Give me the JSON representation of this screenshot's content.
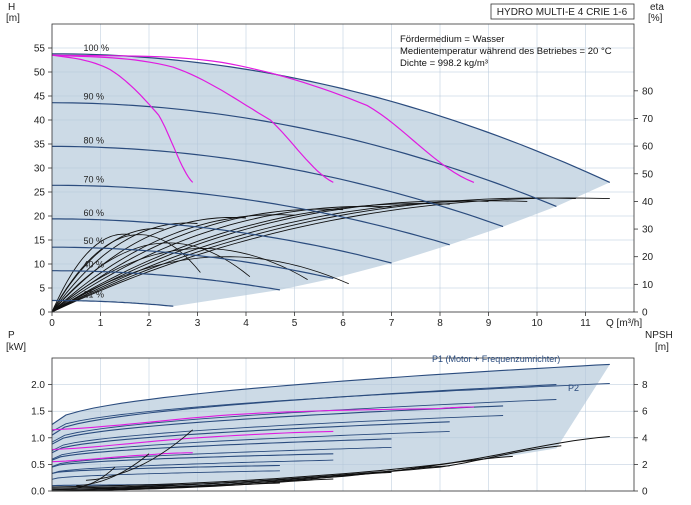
{
  "title": "HYDRO MULTI-E 4 CRIE 1-6",
  "medium_lines": [
    "Fördermedium = Wasser",
    "Medientemperatur während des Betriebes = 20 °C",
    "Dichte = 998.2 kg/m³"
  ],
  "colors": {
    "shade": "#c3d3e2",
    "grid": "#b4c7d9",
    "head_curve": "#2b4c7e",
    "eta_curve": "#111111",
    "npsh_curve": "#111111",
    "efficiency_curve": "#e01be0"
  },
  "chart_data": [
    {
      "type": "line",
      "name": "head",
      "xlabel": "Q [m³/h]",
      "ylabel_left": [
        "H",
        "[m]"
      ],
      "ylabel_right": [
        "eta",
        "[%]"
      ],
      "xlim": [
        0,
        12
      ],
      "ylim": [
        0,
        60
      ],
      "y2lim": [
        0,
        100
      ],
      "x_ticks": [
        0,
        1,
        2,
        3,
        4,
        5,
        6,
        7,
        8,
        9,
        10,
        11
      ],
      "y_ticks": [
        0,
        5,
        10,
        15,
        20,
        25,
        30,
        35,
        40,
        45,
        50,
        55
      ],
      "y2_ticks": [
        0,
        10,
        20,
        30,
        40,
        50,
        60,
        70,
        80
      ],
      "grid": true,
      "speed_labels": [
        {
          "label": "100 %",
          "speed": 1.0
        },
        {
          "label": "90 %",
          "speed": 0.9
        },
        {
          "label": "80 %",
          "speed": 0.8
        },
        {
          "label": "70 %",
          "speed": 0.7
        },
        {
          "label": "60 %",
          "speed": 0.6
        },
        {
          "label": "50 %",
          "speed": 0.5
        },
        {
          "label": "40 %",
          "speed": 0.4
        },
        {
          "label": "21 %",
          "speed": 0.21
        }
      ],
      "head_curves": [
        {
          "speed": 1.0,
          "h0": 53.8,
          "qmax": 11.5,
          "hend": 27.0
        },
        {
          "speed": 0.9,
          "h0": 43.6,
          "qmax": 10.4,
          "hend": 22.0
        },
        {
          "speed": 0.8,
          "h0": 34.5,
          "qmax": 9.3,
          "hend": 17.8
        },
        {
          "speed": 0.7,
          "h0": 26.4,
          "qmax": 8.2,
          "hend": 14.0
        },
        {
          "speed": 0.6,
          "h0": 19.4,
          "qmax": 7.0,
          "hend": 10.2
        },
        {
          "speed": 0.5,
          "h0": 13.5,
          "qmax": 5.8,
          "hend": 7.0
        },
        {
          "speed": 0.4,
          "h0": 8.6,
          "qmax": 4.7,
          "hend": 4.6
        },
        {
          "speed": 0.21,
          "h0": 2.4,
          "qmax": 2.5,
          "hend": 1.2
        }
      ],
      "efficiency_iso_curves": [
        {
          "x": [
            0,
            1.2,
            2.2,
            2.9
          ],
          "y": [
            53.5,
            50.5,
            41.0,
            27.0
          ]
        },
        {
          "x": [
            0,
            2.5,
            4.5,
            5.8
          ],
          "y": [
            53.5,
            51.0,
            40.0,
            27.0
          ]
        },
        {
          "x": [
            0,
            3.5,
            6.5,
            8.7
          ],
          "y": [
            53.5,
            52.0,
            43.0,
            27.0
          ]
        }
      ],
      "eta_curves_peak": [
        {
          "q": 11.5,
          "eta": 41.0
        },
        {
          "q": 10.8,
          "eta": 41.0
        },
        {
          "q": 9.8,
          "eta": 40.0
        },
        {
          "q": 9.0,
          "eta": 40.0
        },
        {
          "q": 8.2,
          "eta": 39.0
        },
        {
          "q": 7.0,
          "eta": 38.0
        },
        {
          "q": 6.0,
          "eta": 37.0
        },
        {
          "q": 5.0,
          "eta": 35.0
        },
        {
          "q": 4.0,
          "eta": 34.0
        },
        {
          "q": 3.0,
          "eta": 32.0
        },
        {
          "q": 2.3,
          "eta": 30.0
        },
        {
          "q": 1.6,
          "eta": 28.0
        }
      ]
    },
    {
      "type": "line",
      "name": "power",
      "ylabel_left": [
        "P",
        "[kW]"
      ],
      "ylabel_right": [
        "NPSH",
        "[m]"
      ],
      "xlim": [
        0,
        12
      ],
      "ylim": [
        0,
        2.5
      ],
      "y2lim": [
        0,
        10
      ],
      "y_ticks": [
        0.0,
        0.5,
        1.0,
        1.5,
        2.0
      ],
      "y_tick_labels": [
        "0.0",
        "0.5",
        "1.0",
        "1.5",
        "2.0"
      ],
      "y2_ticks": [
        0,
        2,
        4,
        6,
        8
      ],
      "series_labels": [
        "P1 (Motor + Frequenzumrichter)",
        "P2"
      ],
      "p1_curves": [
        {
          "p0": 1.25,
          "pend": 2.38,
          "qmax": 11.5
        },
        {
          "p0": 1.05,
          "pend": 2.0,
          "qmax": 10.4
        },
        {
          "p0": 0.88,
          "pend": 1.6,
          "qmax": 9.3
        },
        {
          "p0": 0.72,
          "pend": 1.3,
          "qmax": 8.2
        },
        {
          "p0": 0.58,
          "pend": 0.98,
          "qmax": 7.0
        },
        {
          "p0": 0.45,
          "pend": 0.7,
          "qmax": 5.8
        },
        {
          "p0": 0.33,
          "pend": 0.48,
          "qmax": 4.7
        },
        {
          "p0": 0.1,
          "pend": 0.12,
          "qmax": 2.5
        }
      ],
      "p2_curves": [
        {
          "p0": 1.12,
          "pend": 2.02,
          "qmax": 11.5
        },
        {
          "p0": 0.92,
          "pend": 1.72,
          "qmax": 10.4
        },
        {
          "p0": 0.76,
          "pend": 1.42,
          "qmax": 9.3
        },
        {
          "p0": 0.6,
          "pend": 1.12,
          "qmax": 8.2
        },
        {
          "p0": 0.46,
          "pend": 0.82,
          "qmax": 7.0
        },
        {
          "p0": 0.33,
          "pend": 0.58,
          "qmax": 5.8
        },
        {
          "p0": 0.22,
          "pend": 0.38,
          "qmax": 4.7
        }
      ],
      "npsh_curves": [
        {
          "x": [
            0,
            4,
            8,
            11.5
          ],
          "y": [
            0.3,
            0.8,
            2.0,
            4.1
          ]
        },
        {
          "x": [
            0,
            4,
            8,
            10.5
          ],
          "y": [
            0.2,
            0.7,
            1.8,
            3.4
          ]
        },
        {
          "x": [
            0,
            3.5,
            7,
            9.5
          ],
          "y": [
            0.1,
            0.6,
            1.5,
            2.6
          ]
        },
        {
          "x": [
            0,
            3,
            6,
            8.2
          ],
          "y": [
            0.1,
            0.4,
            1.1,
            1.9
          ]
        },
        {
          "x": [
            0,
            2.5,
            5,
            7.0
          ],
          "y": [
            0.0,
            0.3,
            0.8,
            1.4
          ]
        },
        {
          "x": [
            0,
            2,
            4,
            5.8
          ],
          "y": [
            0.0,
            0.2,
            0.5,
            0.9
          ]
        },
        {
          "x": [
            0,
            1.5,
            3,
            4.7
          ],
          "y": [
            0.0,
            0.1,
            0.3,
            0.6
          ]
        }
      ],
      "eff_power_curves": [
        {
          "x": [
            0,
            4,
            8,
            8.7
          ],
          "y": [
            1.15,
            1.45,
            1.55,
            1.58
          ]
        },
        {
          "x": [
            0,
            3,
            5.8
          ],
          "y": [
            0.78,
            1.0,
            1.12
          ]
        },
        {
          "x": [
            0,
            2,
            2.9
          ],
          "y": [
            0.55,
            0.68,
            0.72
          ]
        }
      ]
    }
  ]
}
